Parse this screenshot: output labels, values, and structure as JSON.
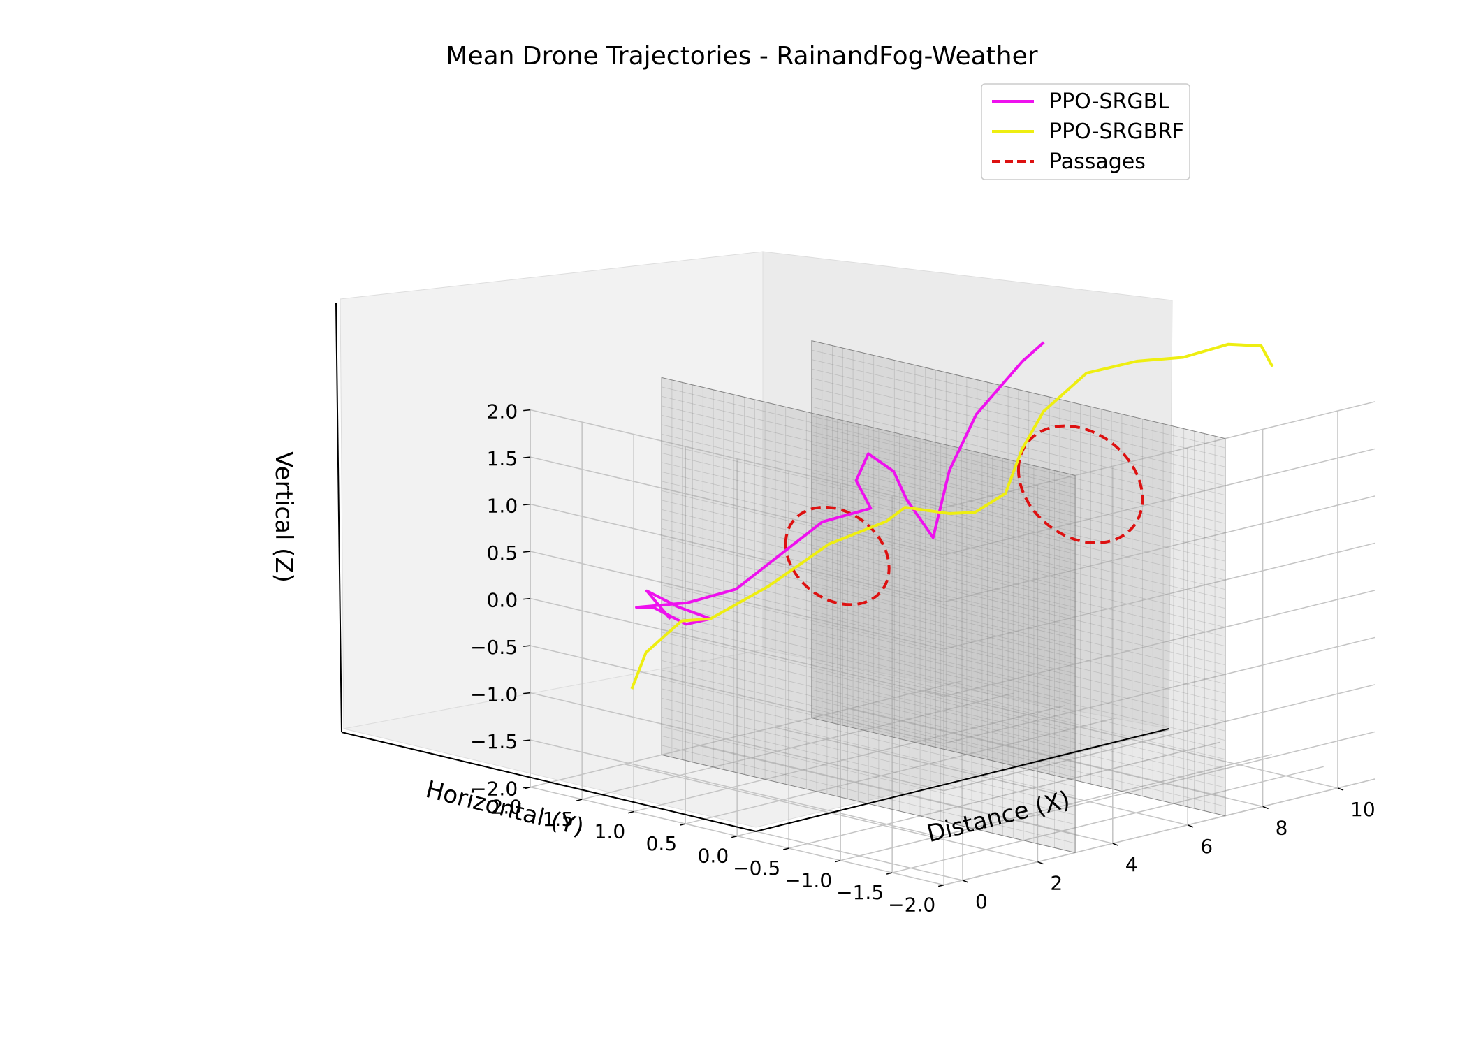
{
  "chart_data": {
    "type": "line",
    "projection": "3d",
    "title": "Mean Drone Trajectories - RainandFog-Weather",
    "xlabel": "Distance (X)",
    "ylabel": "Horizontal (Y)",
    "zlabel": "Vertical (Z)",
    "xlim": [
      -0.5,
      11
    ],
    "ylim": [
      -2,
      2
    ],
    "zlim": [
      -2,
      2
    ],
    "xticks": [
      "0",
      "2",
      "4",
      "6",
      "8",
      "10"
    ],
    "yticks": [
      "2.0",
      "1.5",
      "1.0",
      "0.5",
      "0.0",
      "−0.5",
      "−1.0",
      "−1.5",
      "−2.0"
    ],
    "zticks": [
      "−2.0",
      "−1.5",
      "−1.0",
      "−0.5",
      "0.0",
      "0.5",
      "1.0",
      "1.5",
      "2.0"
    ],
    "grid": true,
    "legend_position": "top-right",
    "walls": [
      {
        "x": 3,
        "y_range": [
          -2,
          2
        ],
        "z_range": [
          -2,
          2
        ]
      },
      {
        "x": 7,
        "y_range": [
          -2,
          2
        ],
        "z_range": [
          -2,
          2
        ]
      }
    ],
    "series": [
      {
        "name": "PPO-SRGBL",
        "color": "#ee11ee",
        "points": [
          [
            0.2,
            0.9,
            0.0
          ],
          [
            0.4,
            1.2,
            0.2
          ],
          [
            0.7,
            1.0,
            0.05
          ],
          [
            1.0,
            0.8,
            -0.05
          ],
          [
            0.9,
            1.0,
            -0.15
          ],
          [
            0.6,
            1.2,
            0.0
          ],
          [
            0.4,
            1.3,
            0.0
          ],
          [
            0.8,
            0.95,
            0.1
          ],
          [
            1.4,
            0.7,
            0.25
          ],
          [
            2.0,
            0.5,
            0.6
          ],
          [
            2.6,
            0.3,
            0.95
          ],
          [
            3.2,
            0.05,
            1.1
          ],
          [
            3.5,
            0.3,
            1.3
          ],
          [
            4.1,
            0.4,
            1.5
          ],
          [
            4.5,
            0.3,
            1.3
          ],
          [
            4.7,
            0.25,
            1.0
          ],
          [
            5.0,
            0.1,
            0.6
          ],
          [
            5.3,
            0.05,
            1.3
          ],
          [
            5.6,
            -0.1,
            1.9
          ],
          [
            6.0,
            -0.4,
            2.5
          ],
          [
            6.3,
            -0.5,
            2.7
          ]
        ]
      },
      {
        "name": "PPO-SRGBRF",
        "color": "#eeee11",
        "points": [
          [
            0.0,
            1.2,
            -0.8
          ],
          [
            0.1,
            1.1,
            -0.4
          ],
          [
            0.5,
            0.9,
            -0.05
          ],
          [
            1.0,
            0.8,
            -0.05
          ],
          [
            1.7,
            0.5,
            0.3
          ],
          [
            2.5,
            0.2,
            0.75
          ],
          [
            3.2,
            -0.1,
            1.0
          ],
          [
            3.7,
            -0.1,
            1.1
          ],
          [
            4.2,
            -0.35,
            1.05
          ],
          [
            4.6,
            -0.45,
            1.05
          ],
          [
            5.0,
            -0.6,
            1.25
          ],
          [
            5.3,
            -0.65,
            1.7
          ],
          [
            5.6,
            -0.75,
            2.1
          ],
          [
            6.2,
            -0.95,
            2.5
          ],
          [
            7.0,
            -1.15,
            2.6
          ],
          [
            7.8,
            -1.3,
            2.6
          ],
          [
            8.6,
            -1.45,
            2.7
          ],
          [
            9.2,
            -1.55,
            2.65
          ],
          [
            9.5,
            -1.55,
            2.4
          ]
        ]
      }
    ],
    "passages": {
      "name": "Passages",
      "color": "#dd1111",
      "style": "dashed",
      "circles": [
        {
          "x": 3.0,
          "y": 0.3,
          "z": 0.55,
          "radius": 0.5
        },
        {
          "x": 7.0,
          "y": -0.6,
          "z": 1.15,
          "radius": 0.6
        }
      ]
    }
  }
}
